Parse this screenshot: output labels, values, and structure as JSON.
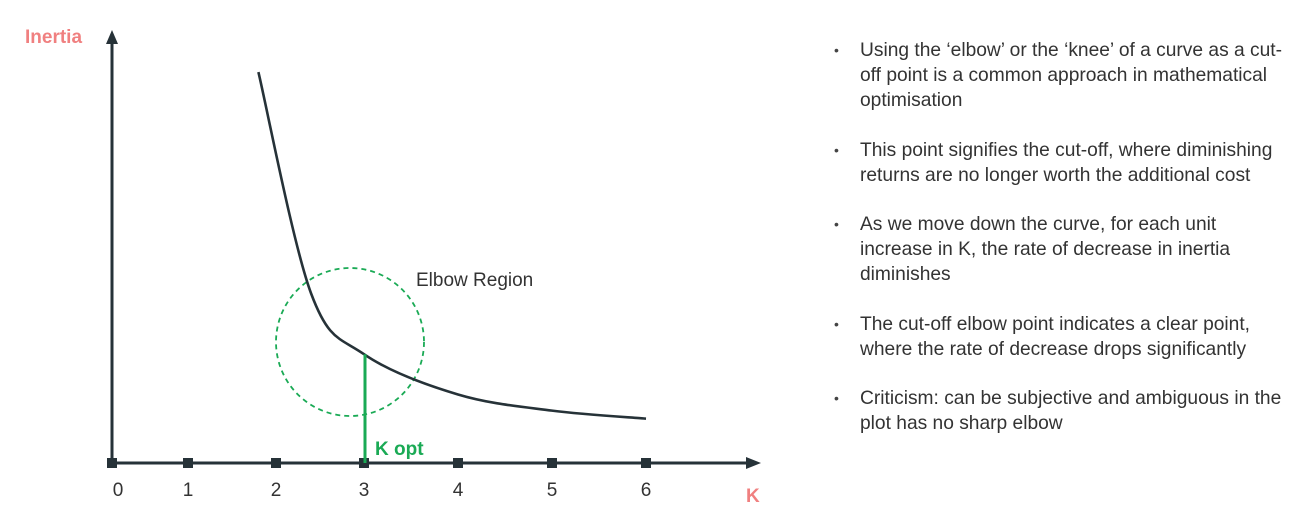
{
  "colors": {
    "axis": "#263238",
    "curve": "#263238",
    "accent_label": "#f08080",
    "highlight": "#1aaa55"
  },
  "chart_data": {
    "type": "line",
    "title": "",
    "xlabel": "K",
    "ylabel": "Inertia",
    "x_ticks": [
      "0",
      "1",
      "2",
      "3",
      "4",
      "5",
      "6"
    ],
    "series": [
      {
        "x": [
          1.8,
          2.4,
          3.0,
          4.0,
          5.0,
          6.0
        ],
        "y": [
          0.97,
          0.42,
          0.27,
          0.17,
          0.13,
          0.11
        ]
      }
    ],
    "elbow_label": "Elbow Region",
    "elbow_center_k": 2.9,
    "k_opt": 3,
    "k_opt_label": "K opt"
  },
  "bullets": [
    "Using the ‘elbow’ or the ‘knee’ of a curve as a cut-off point is a common approach in mathematical optimisation",
    "This point signifies the cut-off, where diminishing returns are no longer worth the additional cost",
    "As we move down the curve, for each unit increase in K, the rate of decrease in inertia diminishes",
    "The cut-off elbow point indicates a clear point, where the rate of decrease drops significantly",
    "Criticism: can be subjective and ambiguous in the plot has no sharp elbow"
  ]
}
